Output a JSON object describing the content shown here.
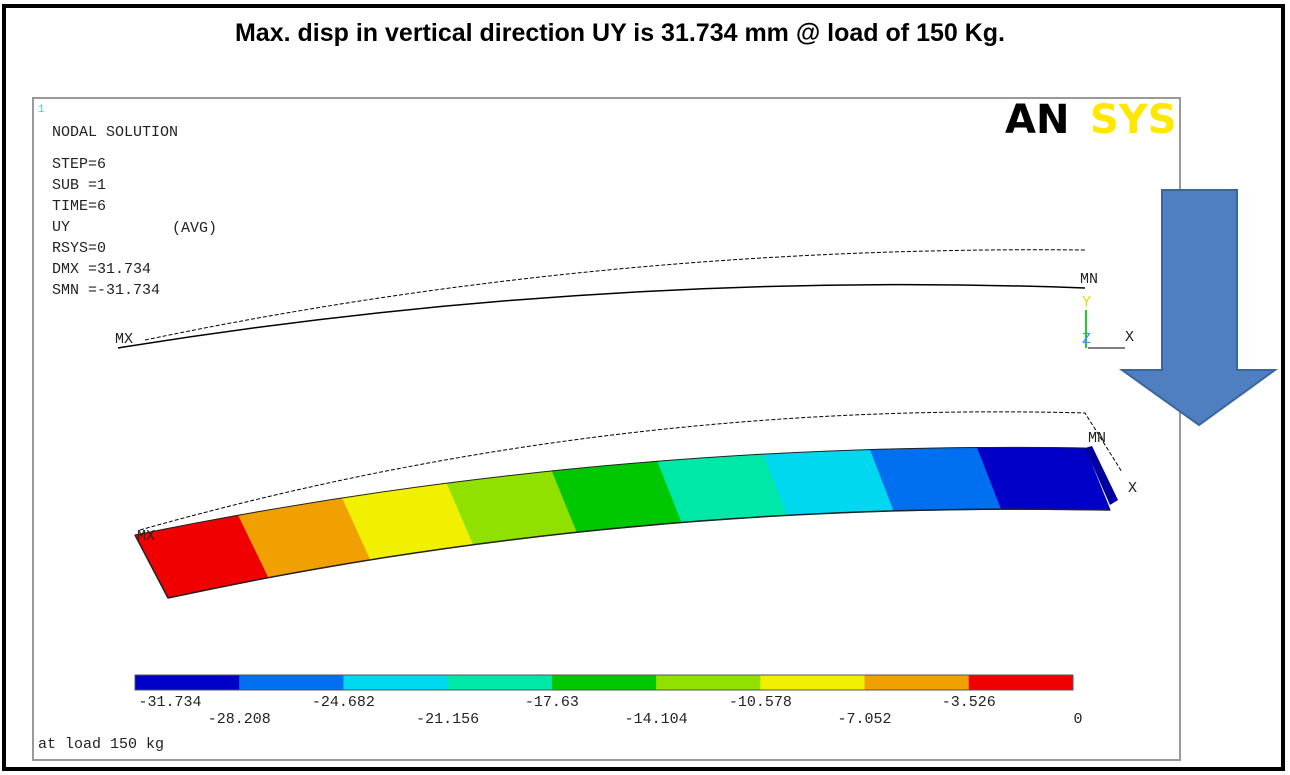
{
  "header": {
    "title": "Max. disp in vertical direction UY is 31.734 mm @ load of 150 Kg."
  },
  "panel": {
    "window_number": "1",
    "heading": "NODAL SOLUTION",
    "info": [
      "STEP=6",
      "SUB =1",
      "TIME=6",
      "UY",
      "RSYS=0",
      "DMX =31.734",
      "SMN =-31.734"
    ],
    "avg": "(AVG)",
    "logo_left": "AN",
    "logo_right": "SYS",
    "upper_labels": {
      "max": "MX",
      "min": "MN",
      "y_axis": "Y",
      "z_axis": "Z",
      "x_axis": "X"
    },
    "lower_labels": {
      "max": "MX",
      "min": "MN",
      "x_axis": "X"
    },
    "caption": "at load 150 kg"
  },
  "legend": {
    "ticks": [
      -31.734,
      -28.208,
      -24.682,
      -21.156,
      -17.63,
      -14.104,
      -10.578,
      -7.052,
      -3.526,
      0
    ],
    "colors": [
      "#0000c8",
      "#0070f0",
      "#00d8f0",
      "#00e8a8",
      "#00c800",
      "#90e000",
      "#f0f000",
      "#f0a000",
      "#f00000"
    ]
  }
}
